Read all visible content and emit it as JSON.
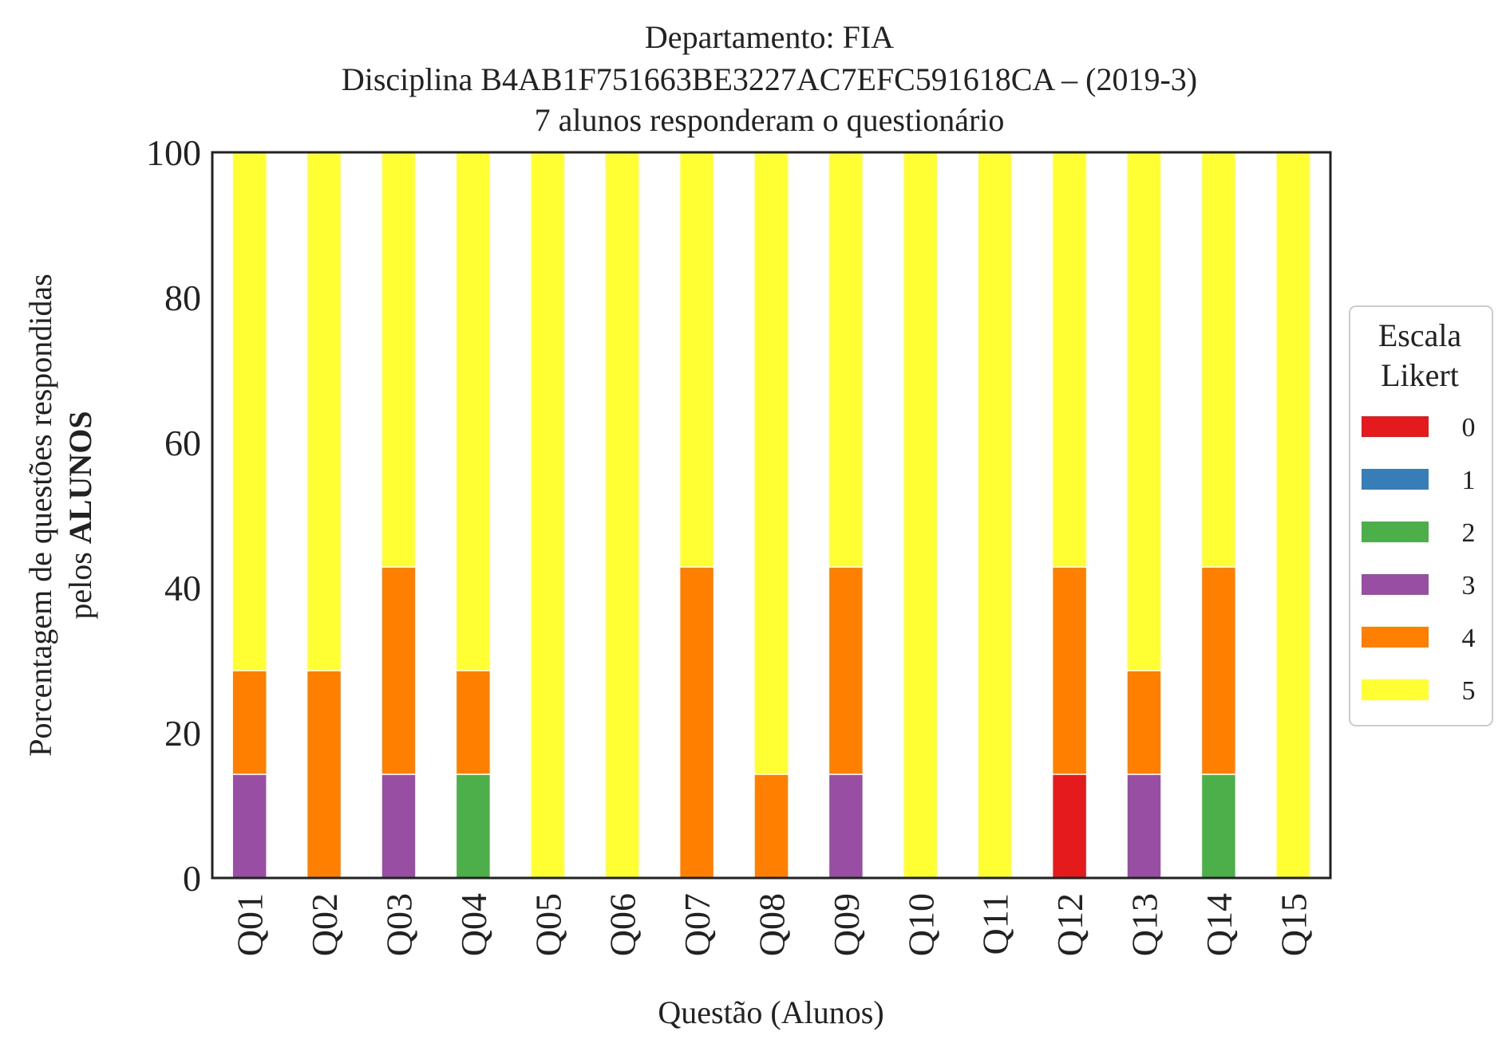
{
  "chart_data": {
    "type": "bar",
    "stacked": true,
    "title_lines": [
      "Departamento: FIA",
      "Disciplina B4AB1F751663BE3227AC7EFC591618CA – (2019-3)",
      "7 alunos responderam o questionário"
    ],
    "xlabel": "Questão (Alunos)",
    "ylabel_line1": "Porcentagem de questões respondidas",
    "ylabel_line2_prefix": "pelos ",
    "ylabel_line2_bold": "ALUNOS",
    "ylim": [
      0,
      100
    ],
    "yticks": [
      "0",
      "20",
      "40",
      "60",
      "80",
      "100"
    ],
    "grid": false,
    "legend": {
      "title_lines": [
        "Escala",
        "Likert"
      ],
      "placement": "right-center, outside plot"
    },
    "categories": [
      "Q01",
      "Q02",
      "Q03",
      "Q04",
      "Q05",
      "Q06",
      "Q07",
      "Q08",
      "Q09",
      "Q10",
      "Q11",
      "Q12",
      "Q13",
      "Q14",
      "Q15"
    ],
    "series": [
      {
        "name": "0",
        "color": "#e41a1c",
        "values": [
          0,
          0,
          0,
          0,
          0,
          0,
          0,
          0,
          0,
          0,
          0,
          14.29,
          0,
          0,
          0
        ]
      },
      {
        "name": "1",
        "color": "#377eb8",
        "values": [
          0,
          0,
          0,
          0,
          0,
          0,
          0,
          0,
          0,
          0,
          0,
          0,
          0,
          0,
          0
        ]
      },
      {
        "name": "2",
        "color": "#4daf4a",
        "values": [
          0,
          0,
          0,
          14.29,
          0,
          0,
          0,
          0,
          0,
          0,
          0,
          0,
          0,
          14.29,
          0
        ]
      },
      {
        "name": "3",
        "color": "#984ea3",
        "values": [
          14.29,
          0,
          14.29,
          0,
          0,
          0,
          0,
          0,
          14.29,
          0,
          0,
          0,
          14.29,
          0,
          0
        ]
      },
      {
        "name": "4",
        "color": "#ff7f00",
        "values": [
          14.29,
          28.57,
          28.57,
          14.29,
          0,
          0,
          42.86,
          14.29,
          28.57,
          0,
          0,
          28.57,
          14.29,
          28.57,
          0
        ]
      },
      {
        "name": "5",
        "color": "#ffff33",
        "values": [
          71.43,
          71.43,
          57.14,
          71.43,
          100,
          100,
          57.14,
          85.71,
          57.14,
          100,
          100,
          57.14,
          71.43,
          57.14,
          100
        ]
      }
    ]
  }
}
